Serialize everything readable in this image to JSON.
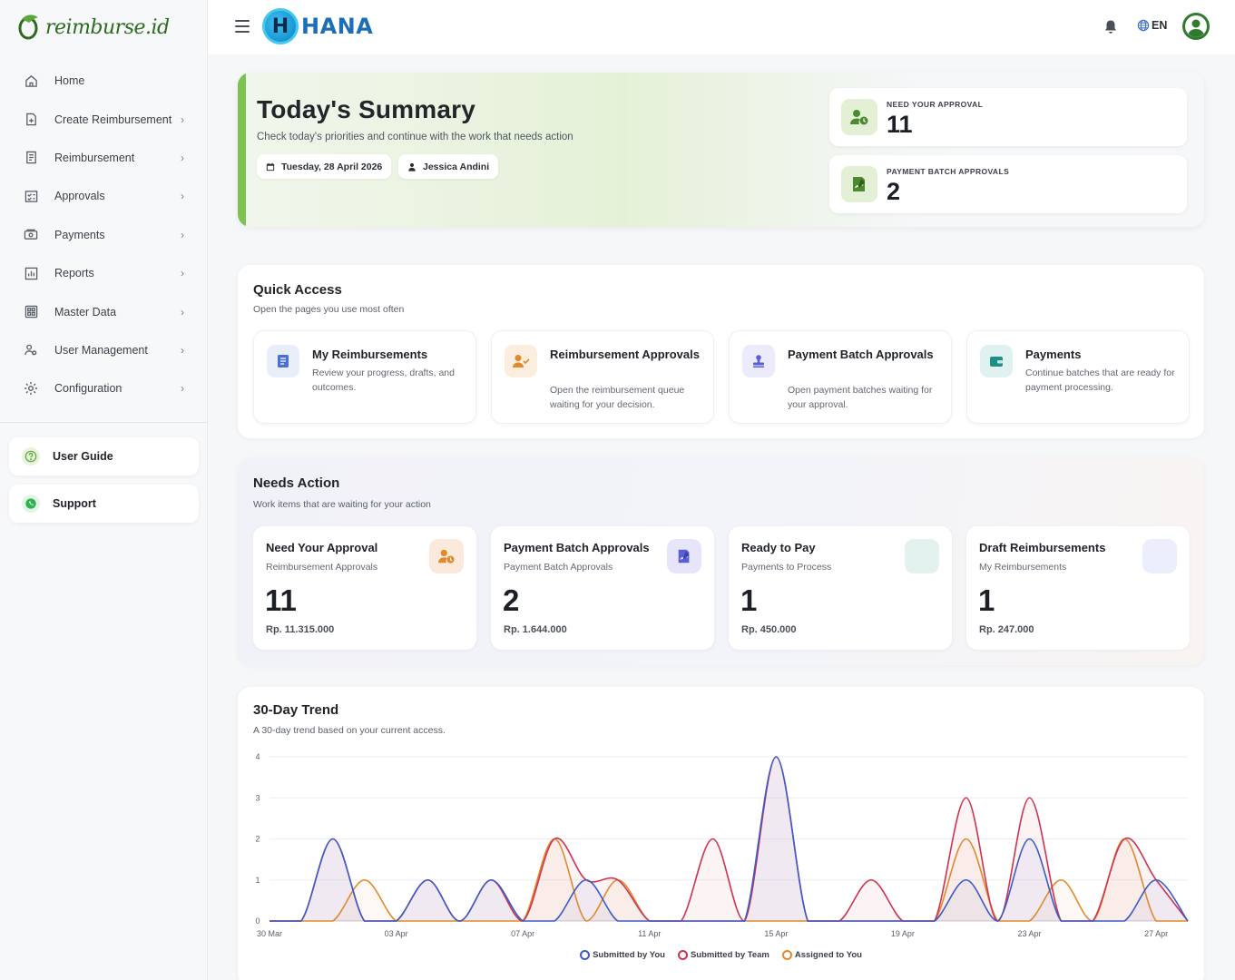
{
  "sidebar": {
    "logo_text": "reimburse.id",
    "items": [
      {
        "label": "Home",
        "icon": "home-icon",
        "chevron": false
      },
      {
        "label": "Create Reimbursement",
        "icon": "document-add-icon",
        "chevron": true
      },
      {
        "label": "Reimbursement",
        "icon": "receipt-icon",
        "chevron": true
      },
      {
        "label": "Approvals",
        "icon": "checklist-icon",
        "chevron": true
      },
      {
        "label": "Payments",
        "icon": "money-icon",
        "chevron": true
      },
      {
        "label": "Reports",
        "icon": "chart-icon",
        "chevron": true
      },
      {
        "label": "Master Data",
        "icon": "grid-icon",
        "chevron": true
      },
      {
        "label": "User Management",
        "icon": "users-icon",
        "chevron": true
      },
      {
        "label": "Configuration",
        "icon": "gear-icon",
        "chevron": true
      }
    ],
    "user_guide": "User Guide",
    "support": "Support"
  },
  "topbar": {
    "brand_letter": "H",
    "brand": "HANA",
    "language": "EN"
  },
  "summary": {
    "title": "Today's Summary",
    "subtitle": "Check today's priorities and continue with the work that needs action",
    "date": "Tuesday, 28 April 2026",
    "user": "Jessica Andini",
    "stats": [
      {
        "label": "NEED YOUR APPROVAL",
        "value": "11"
      },
      {
        "label": "PAYMENT BATCH APPROVALS",
        "value": "2"
      }
    ]
  },
  "quick_access": {
    "title": "Quick Access",
    "subtitle": "Open the pages you use most often",
    "cards": [
      {
        "title": "My Reimbursements",
        "desc": "Review your progress, drafts, and outcomes.",
        "color": "#4a6fd8"
      },
      {
        "title": "Reimbursement Approvals",
        "desc": "Open the reimbursement queue waiting for your decision.",
        "color": "#e08a2c"
      },
      {
        "title": "Payment Batch Approvals",
        "desc": "Open payment batches waiting for your approval.",
        "color": "#5a5fd6"
      },
      {
        "title": "Payments",
        "desc": "Continue batches that are ready for payment processing.",
        "color": "#1f8f86"
      }
    ]
  },
  "needs_action": {
    "title": "Needs Action",
    "subtitle": "Work items that are waiting for your action",
    "cards": [
      {
        "title": "Need Your Approval",
        "sub": "Reimbursement Approvals",
        "value": "11",
        "amount": "Rp. 11.315.000"
      },
      {
        "title": "Payment Batch Approvals",
        "sub": "Payment Batch Approvals",
        "value": "2",
        "amount": "Rp. 1.644.000"
      },
      {
        "title": "Ready to Pay",
        "sub": "Payments to Process",
        "value": "1",
        "amount": "Rp. 450.000"
      },
      {
        "title": "Draft Reimbursements",
        "sub": "My Reimbursements",
        "value": "1",
        "amount": "Rp. 247.000"
      }
    ]
  },
  "trend": {
    "title": "30-Day Trend",
    "subtitle": "A 30-day trend based on your current access."
  },
  "chart_data": {
    "type": "line",
    "x": [
      "30 Mar",
      "31 Mar",
      "01 Apr",
      "02 Apr",
      "03 Apr",
      "04 Apr",
      "05 Apr",
      "06 Apr",
      "07 Apr",
      "08 Apr",
      "09 Apr",
      "10 Apr",
      "11 Apr",
      "12 Apr",
      "13 Apr",
      "14 Apr",
      "15 Apr",
      "16 Apr",
      "17 Apr",
      "18 Apr",
      "19 Apr",
      "20 Apr",
      "21 Apr",
      "22 Apr",
      "23 Apr",
      "24 Apr",
      "25 Apr",
      "26 Apr",
      "27 Apr",
      "28 Apr"
    ],
    "tick_labels": [
      "30 Mar",
      "03 Apr",
      "07 Apr",
      "11 Apr",
      "15 Apr",
      "19 Apr",
      "23 Apr",
      "27 Apr"
    ],
    "ylim": [
      0,
      4
    ],
    "yticks": [
      0,
      1,
      2,
      3,
      4
    ],
    "grid": true,
    "legend_position": "bottom",
    "series": [
      {
        "name": "Submitted by You",
        "color": "#3b5bc9",
        "values": [
          0,
          0,
          2,
          0,
          0,
          1,
          0,
          1,
          0,
          0,
          1,
          0,
          0,
          0,
          0,
          0,
          4,
          0,
          0,
          0,
          0,
          0,
          1,
          0,
          2,
          0,
          0,
          0,
          1,
          0
        ]
      },
      {
        "name": "Submitted by Team",
        "color": "#d0334f",
        "values": [
          0,
          0,
          2,
          0,
          0,
          1,
          0,
          1,
          0,
          2,
          1,
          1,
          0,
          0,
          2,
          0,
          4,
          0,
          0,
          1,
          0,
          0,
          3,
          0,
          3,
          0,
          0,
          2,
          1,
          0
        ]
      },
      {
        "name": "Assigned to You",
        "color": "#e08a2c",
        "values": [
          0,
          0,
          0,
          1,
          0,
          0,
          0,
          0,
          0,
          2,
          0,
          1,
          0,
          0,
          0,
          0,
          0,
          0,
          0,
          0,
          0,
          0,
          2,
          0,
          0,
          1,
          0,
          2,
          0,
          0
        ]
      }
    ]
  }
}
